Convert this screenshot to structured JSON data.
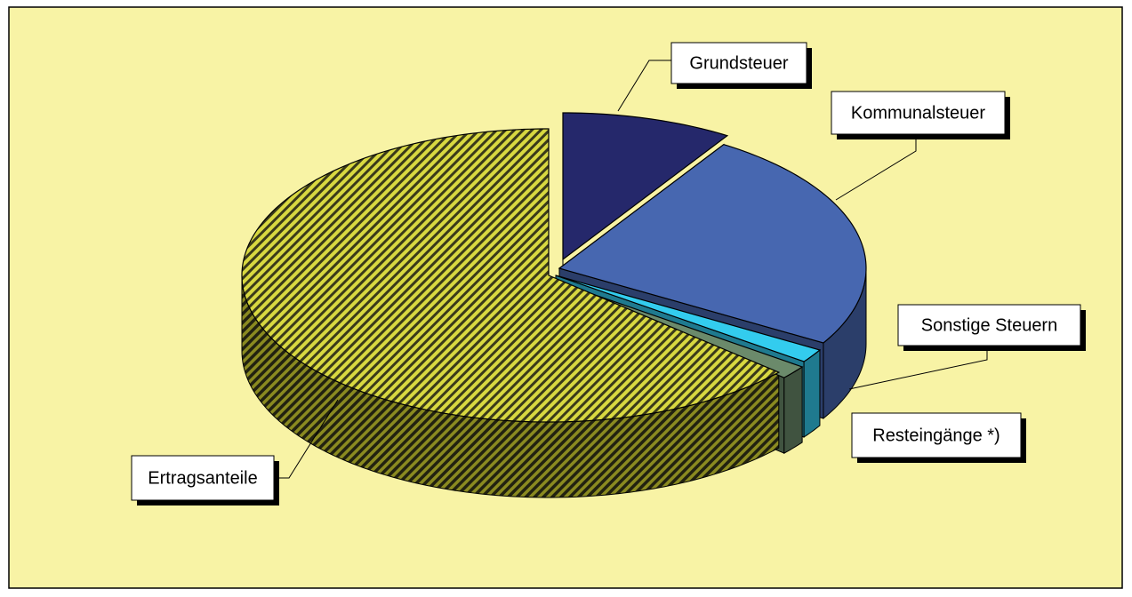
{
  "chart_data": {
    "type": "pie",
    "categories": [
      "Grundsteuer",
      "Kommunalsteuer",
      "Sonstige Steuern",
      "Resteingänge *)",
      "Ertragsanteile"
    ],
    "values": [
      9,
      24.5,
      1.5,
      1.5,
      63.5
    ],
    "colors": [
      "#25286b",
      "#4767b0",
      "#33ccee",
      "#6b8a6b",
      "#d8d840"
    ],
    "patterns": [
      null,
      null,
      null,
      null,
      "diagonal-hatch"
    ]
  }
}
